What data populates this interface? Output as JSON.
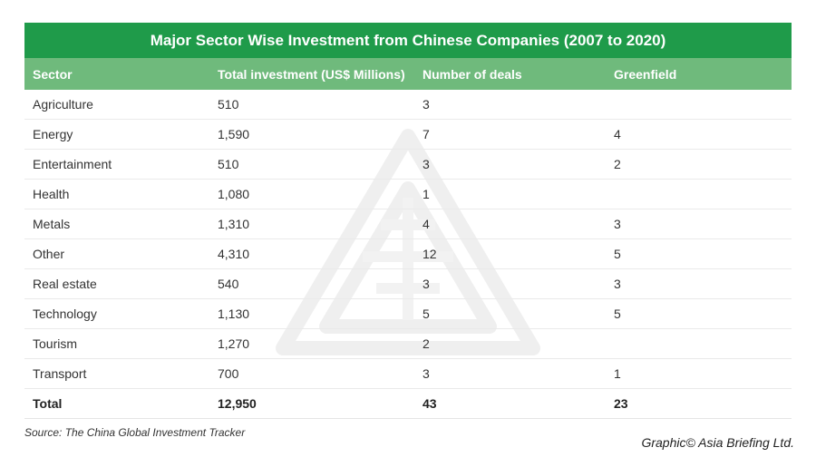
{
  "table": {
    "title": "Major Sector Wise Investment from Chinese Companies (2007 to 2020)",
    "headers": [
      "Sector",
      "Total investment (US$ Millions)",
      "Number of deals",
      "Greenfield"
    ],
    "rows": [
      [
        "Agriculture",
        "510",
        "3",
        ""
      ],
      [
        "Energy",
        "1,590",
        "7",
        "4"
      ],
      [
        "Entertainment",
        "510",
        "3",
        "2"
      ],
      [
        "Health",
        "1,080",
        "1",
        ""
      ],
      [
        "Metals",
        "1,310",
        "4",
        "3"
      ],
      [
        "Other",
        "4,310",
        "12",
        "5"
      ],
      [
        "Real estate",
        "540",
        "3",
        "3"
      ],
      [
        "Technology",
        "1,130",
        "5",
        "5"
      ],
      [
        "Tourism",
        "1,270",
        "2",
        ""
      ],
      [
        "Transport",
        "700",
        "3",
        "1"
      ]
    ],
    "total": [
      "Total",
      "12,950",
      "43",
      "23"
    ]
  },
  "source": "Source: The China Global Investment Tracker",
  "credit": "Graphic© Asia Briefing Ltd.",
  "colors": {
    "title_bg": "#1f9b4a",
    "header_bg": "#6fba7c",
    "watermark": "#efefef"
  },
  "watermark_icon": "asia-briefing-logo-icon"
}
